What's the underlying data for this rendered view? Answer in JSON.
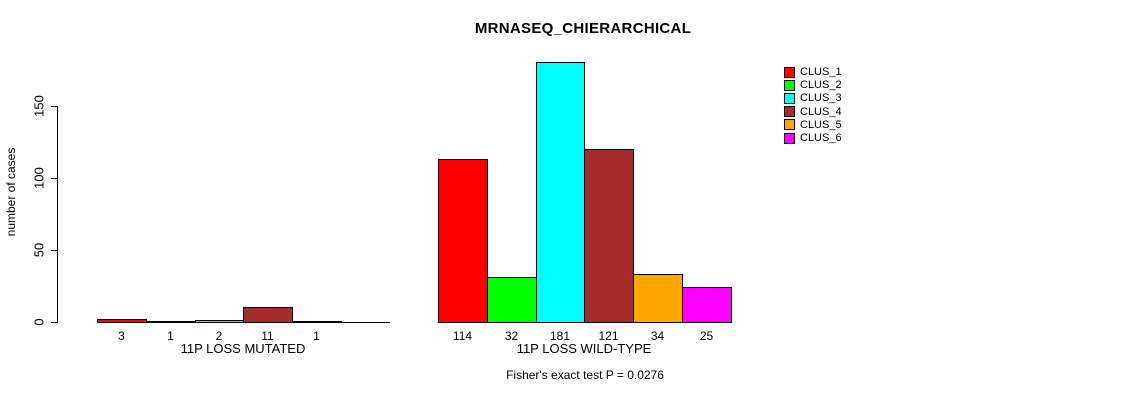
{
  "title": "MRNASEQ_CHIERARCHICAL",
  "annotation": "Fisher's exact test P = 0.0276",
  "y_axis": {
    "label": "number of cases",
    "ticks": [
      "0",
      "50",
      "100",
      "150"
    ]
  },
  "legend": {
    "position": "top-right",
    "items": [
      {
        "label": "CLUS_1",
        "color": "#FF0000"
      },
      {
        "label": "CLUS_2",
        "color": "#00FF00"
      },
      {
        "label": "CLUS_3",
        "color": "#00FFFF"
      },
      {
        "label": "CLUS_4",
        "color": "#A52A2A"
      },
      {
        "label": "CLUS_5",
        "color": "#FFA500"
      },
      {
        "label": "CLUS_6",
        "color": "#FF00FF"
      }
    ]
  },
  "chart_data": {
    "type": "bar",
    "title": "MRNASEQ_CHIERARCHICAL",
    "xlabel": "",
    "ylabel": "number of cases",
    "ylim": [
      0,
      181
    ],
    "axis_ticks": [
      0,
      50,
      100,
      150
    ],
    "grid": false,
    "legend_position": "top-right",
    "series": [
      "CLUS_1",
      "CLUS_2",
      "CLUS_3",
      "CLUS_4",
      "CLUS_5",
      "CLUS_6"
    ],
    "colors": [
      "#FF0000",
      "#00FF00",
      "#00FFFF",
      "#A52A2A",
      "#FFA500",
      "#FF00FF"
    ],
    "groups": [
      {
        "label": "11P LOSS MUTATED",
        "values": [
          3,
          1,
          2,
          11,
          1,
          0
        ],
        "bar_labels": [
          "3",
          "1",
          "2",
          "11",
          "1",
          ""
        ]
      },
      {
        "label": "11P LOSS WILD-TYPE",
        "values": [
          114,
          32,
          181,
          121,
          34,
          25
        ],
        "bar_labels": [
          "114",
          "32",
          "181",
          "121",
          "34",
          "25"
        ]
      }
    ],
    "annotation": "Fisher's exact test P = 0.0276"
  }
}
